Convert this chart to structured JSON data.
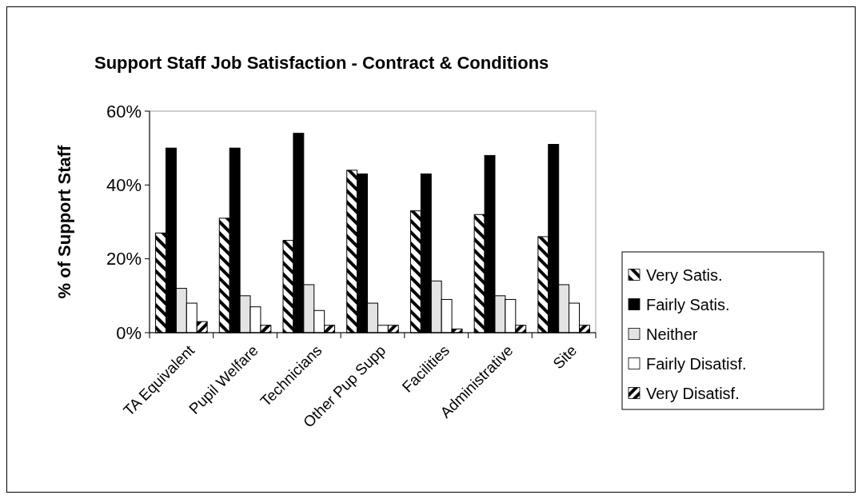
{
  "chart_data": {
    "type": "bar",
    "title": "Support Staff Job Satisfaction - Contract & Conditions",
    "ylabel": "% of Support Staff",
    "categories": [
      "TA Equivalent",
      "Pupil Welfare",
      "Technicians",
      "Other Pup Supp",
      "Facilities",
      "Administrative",
      "Site"
    ],
    "series": [
      {
        "name": "Very Satis.",
        "color": "#000000",
        "values": [
          27,
          31,
          25,
          44,
          33,
          32,
          26
        ]
      },
      {
        "name": "Fairly Satis.",
        "color": "#000000",
        "values": [
          50,
          50,
          54,
          43,
          43,
          48,
          51
        ]
      },
      {
        "name": "Neither",
        "color": "#e3e3e3",
        "values": [
          12,
          10,
          13,
          8,
          14,
          10,
          13
        ]
      },
      {
        "name": "Fairly Disatisf.",
        "color": "#ffffff",
        "values": [
          8,
          7,
          6,
          2,
          9,
          9,
          8
        ]
      },
      {
        "name": "Very Disatisf.",
        "color": "#000000",
        "values": [
          3,
          2,
          2,
          2,
          1,
          2,
          2
        ]
      }
    ],
    "ylim": [
      0,
      60
    ],
    "yticks": [
      {
        "value": 0,
        "label": "0%"
      },
      {
        "value": 20,
        "label": "20%"
      },
      {
        "value": 40,
        "label": "40%"
      },
      {
        "value": 60,
        "label": "60%"
      }
    ],
    "legend": "right"
  }
}
